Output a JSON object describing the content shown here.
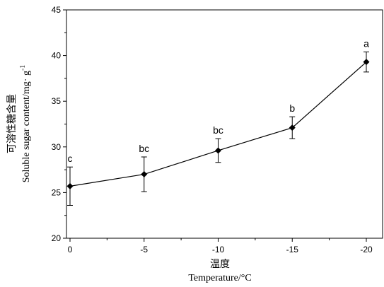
{
  "chart_data": {
    "type": "line",
    "categories": [
      "0",
      "-5",
      "-10",
      "-15",
      "-20"
    ],
    "series": [
      {
        "values": [
          25.7,
          27.0,
          29.6,
          32.1,
          39.3
        ],
        "error": [
          2.1,
          1.9,
          1.3,
          1.2,
          1.1
        ],
        "significance": [
          "c",
          "bc",
          "bc",
          "b",
          "a"
        ],
        "color": "#000000",
        "marker": "diamond"
      }
    ],
    "y_ticks": [
      "20",
      "25",
      "30",
      "35",
      "40",
      "45"
    ],
    "ylim": [
      20,
      45
    ],
    "xlabel_cn": "温度",
    "xlabel": "Temperature/°C",
    "ylabel_cn": "可溶性糖含量",
    "ylabel": "Soluble sugar content/mg· g",
    "ylabel_sup": "-1",
    "grid": false
  }
}
